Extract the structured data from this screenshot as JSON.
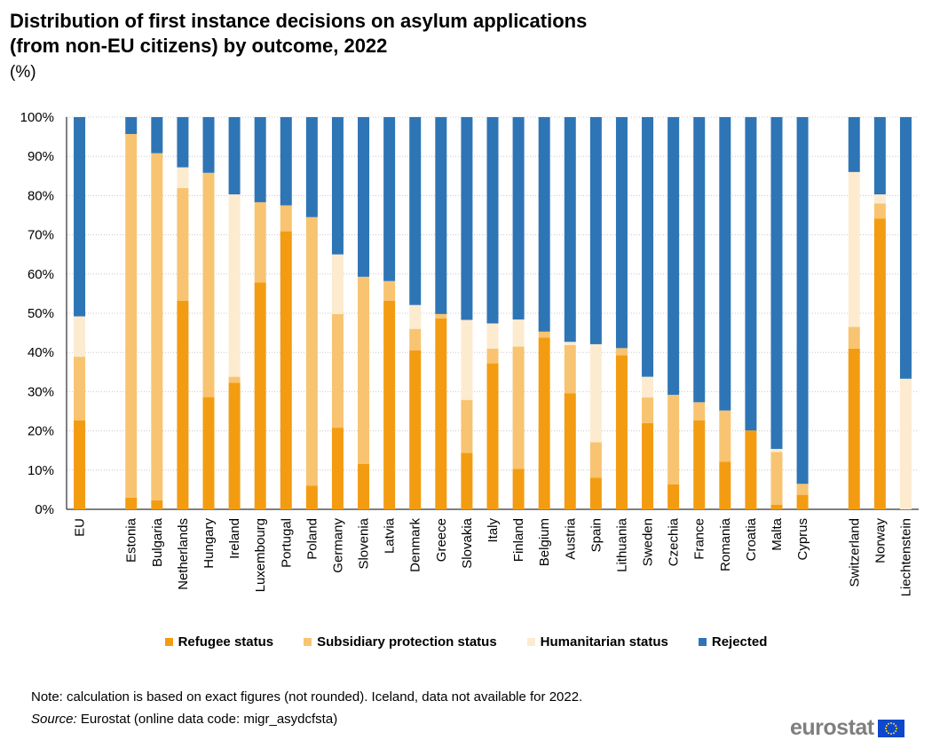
{
  "title_line1": "Distribution of first instance decisions on asylum applications",
  "title_line2": "(from non-EU citizens) by outcome, 2022",
  "unit": "(%)",
  "legend": [
    {
      "label": "Refugee status",
      "color": "#f39c12"
    },
    {
      "label": "Subsidiary protection status",
      "color": "#f8c471"
    },
    {
      "label": "Humanitarian status",
      "color": "#fdebd0"
    },
    {
      "label": "Rejected",
      "color": "#2e75b6"
    }
  ],
  "note": "Note: calculation is based on exact figures (not rounded). Iceland, data not available for 2022.",
  "source_label": "Source:",
  "source_text": " Eurostat (online data code: migr_asydcfsta)",
  "logo_text": "eurostat",
  "chart_data": {
    "type": "bar",
    "stacked": true,
    "title": "Distribution of first instance decisions on asylum applications (from non-EU citizens) by outcome, 2022",
    "ylabel": "(%)",
    "ylim": [
      0,
      100
    ],
    "ytick_step": 10,
    "ytick_suffix": "%",
    "grid": true,
    "legend_position": "bottom",
    "categories": [
      "EU",
      "",
      "Estonia",
      "Bulgaria",
      "Netherlands",
      "Hungary",
      "Ireland",
      "Luxembourg",
      "Portugal",
      "Poland",
      "Germany",
      "Slovenia",
      "Latvia",
      "Denmark",
      "Greece",
      "Slovakia",
      "Italy",
      "Finland",
      "Belgium",
      "Austria",
      "Spain",
      "Lithuania",
      "Sweden",
      "Czechia",
      "France",
      "Romania",
      "Croatia",
      "Malta",
      "Cyprus",
      "",
      "Switzerland",
      "Norway",
      "Liechtenstein"
    ],
    "series": [
      {
        "name": "Refugee status",
        "values": [
          22.7,
          null,
          3.0,
          2.3,
          53.2,
          28.6,
          32.3,
          57.8,
          70.9,
          6.0,
          20.8,
          11.6,
          53.2,
          40.5,
          48.7,
          14.4,
          37.2,
          10.3,
          43.8,
          29.6,
          8.1,
          39.3,
          22.0,
          6.4,
          22.7,
          12.1,
          20.1,
          1.2,
          3.7,
          null,
          41.0,
          74.1,
          0.0
        ]
      },
      {
        "name": "Subsidiary protection status",
        "values": [
          16.2,
          null,
          92.7,
          88.5,
          28.7,
          57.2,
          1.5,
          20.5,
          6.6,
          68.5,
          29.0,
          47.7,
          5.0,
          5.5,
          1.1,
          13.5,
          3.8,
          31.2,
          1.5,
          12.3,
          9.0,
          1.8,
          6.5,
          22.8,
          4.6,
          13.1,
          0.0,
          13.4,
          2.8,
          null,
          5.5,
          3.9,
          0.0
        ]
      },
      {
        "name": "Humanitarian status",
        "values": [
          10.3,
          null,
          0.0,
          0.0,
          5.3,
          0.0,
          46.5,
          0.0,
          0.0,
          0.0,
          15.2,
          0.0,
          0.0,
          6.1,
          0.0,
          20.4,
          6.4,
          6.9,
          0.0,
          0.8,
          25.0,
          0.0,
          5.3,
          0.0,
          0.0,
          0.0,
          0.0,
          0.8,
          0.0,
          null,
          39.5,
          2.3,
          33.3
        ]
      },
      {
        "name": "Rejected",
        "values": [
          50.8,
          null,
          4.3,
          9.2,
          12.8,
          14.2,
          19.7,
          21.7,
          22.5,
          25.5,
          35.0,
          40.7,
          41.8,
          47.9,
          50.2,
          51.7,
          52.6,
          51.6,
          54.7,
          57.3,
          57.9,
          58.9,
          66.2,
          70.8,
          72.7,
          74.8,
          79.9,
          84.6,
          93.5,
          null,
          14.0,
          19.7,
          66.7
        ]
      }
    ]
  }
}
